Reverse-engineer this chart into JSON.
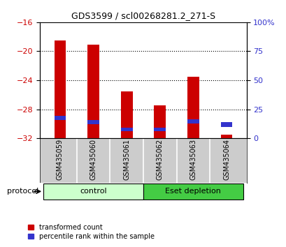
{
  "title": "GDS3599 / scl00268281.2_271-S",
  "samples": [
    "GSM435059",
    "GSM435060",
    "GSM435061",
    "GSM435062",
    "GSM435063",
    "GSM435064"
  ],
  "red_tops": [
    -18.5,
    -19.1,
    -25.5,
    -27.5,
    -23.5,
    -31.5
  ],
  "blue_tops": [
    -29.5,
    -30.1,
    -31.0,
    -31.0,
    -30.0,
    -30.4
  ],
  "blue_heights": [
    0.6,
    0.6,
    0.5,
    0.5,
    0.6,
    0.6
  ],
  "baseline": -32,
  "ylim_left": [
    -32,
    -16
  ],
  "yticks_left": [
    -32,
    -28,
    -24,
    -20,
    -16
  ],
  "yticks_right": [
    0,
    25,
    50,
    75,
    100
  ],
  "ylim_right": [
    0,
    100
  ],
  "red_color": "#cc0000",
  "blue_color": "#3333cc",
  "group1_label": "control",
  "group2_label": "Eset depletion",
  "group1_color": "#ccffcc",
  "group2_color": "#44cc44",
  "group1_indices": [
    0,
    1,
    2
  ],
  "group2_indices": [
    3,
    4,
    5
  ],
  "bar_width": 0.35,
  "label_red": "transformed count",
  "label_blue": "percentile rank within the sample",
  "protocol_label": "protocol",
  "tick_label_color_left": "#cc0000",
  "tick_label_color_right": "#3333cc",
  "sample_label_bg": "#cccccc",
  "gridline_y": [
    -20,
    -24,
    -28
  ]
}
